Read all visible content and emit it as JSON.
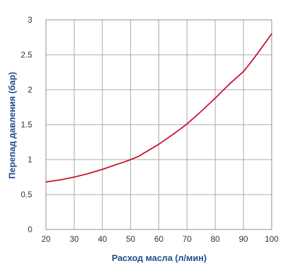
{
  "chart_data": {
    "type": "line",
    "title": "",
    "xlabel": "Расход масла (л/мин)",
    "ylabel": "Перепад давления (бар)",
    "xlim": [
      20,
      100
    ],
    "ylim": [
      0,
      3
    ],
    "xticks": [
      20,
      30,
      40,
      50,
      60,
      70,
      80,
      90,
      100
    ],
    "yticks": [
      0,
      0.5,
      1,
      1.5,
      2,
      2.5,
      3
    ],
    "grid": true,
    "legend": "none",
    "colors": {
      "line": "#c8102e",
      "axis_title": "#1f4e8c",
      "grid": "#a8a8a8"
    },
    "series": [
      {
        "x": [
          20,
          25,
          30,
          35,
          40,
          45,
          48,
          50,
          53,
          55,
          60,
          65,
          70,
          75,
          80,
          85,
          90,
          92,
          95,
          100
        ],
        "y": [
          0.68,
          0.71,
          0.75,
          0.8,
          0.86,
          0.93,
          0.97,
          1.0,
          1.05,
          1.1,
          1.22,
          1.36,
          1.51,
          1.69,
          1.88,
          2.08,
          2.26,
          2.36,
          2.52,
          2.8
        ]
      }
    ]
  }
}
